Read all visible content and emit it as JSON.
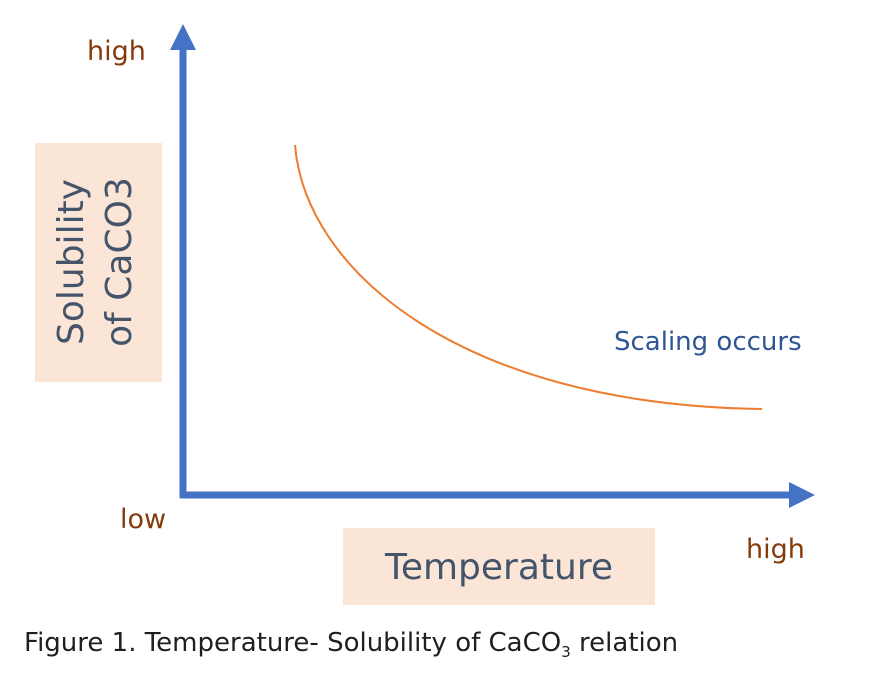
{
  "axes": {
    "y_high": "high",
    "x_low": "low",
    "x_high": "high",
    "y_label": [
      "Solubility",
      "of CaCO3"
    ],
    "x_label": "Temperature"
  },
  "annotation": "Scaling occurs",
  "caption": {
    "text": "Figure 1. Temperature- Solubility of CaCO",
    "subscript": "3",
    "tail": " relation"
  }
}
